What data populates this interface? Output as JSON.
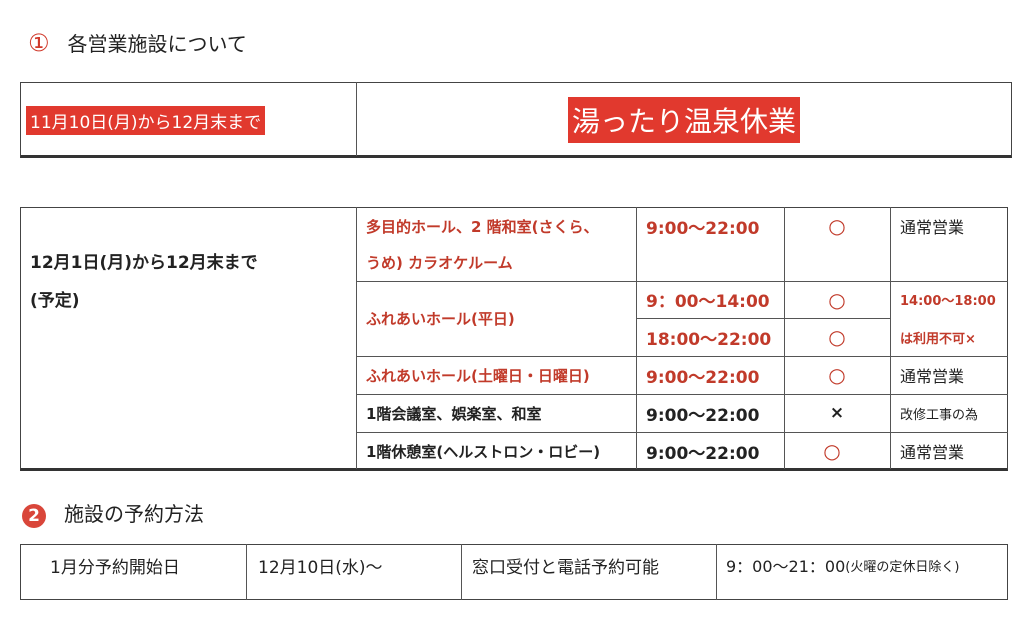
{
  "section1": {
    "number": "①",
    "title": "各営業施設について",
    "notice": {
      "period": "11月10日(月)から12月末まで",
      "message": "湯ったり温泉休業"
    },
    "schedule": {
      "period": "12月1日(月)から12月末まで",
      "period_note": "(予定)",
      "rows": [
        {
          "facility_line1": "多目的ホール、2 階和室(さくら、",
          "facility_line2": "うめ) カラオケルーム",
          "time": "9:00～22:00",
          "mark": "○",
          "note": "通常営業"
        },
        {
          "facility": "ふれあいホール(平日)",
          "time1": "9：00～14:00",
          "mark1": "○",
          "time2": "18:00～22:00",
          "mark2": "○",
          "note_line1": "14:00～18:00",
          "note_line2": "は利用不可×"
        },
        {
          "facility": "ふれあいホール(土曜日・日曜日)",
          "time": "9:00～22:00",
          "mark": "○",
          "note": "通常営業"
        },
        {
          "facility": "1階会議室、娯楽室、和室",
          "time": "9:00～22:00",
          "mark": "×",
          "note": "改修工事の為"
        },
        {
          "facility": "1階休憩室(ヘルストロン・ロビー)",
          "time": "9:00～22:00",
          "mark": "○",
          "note": "通常営業"
        }
      ]
    }
  },
  "section2": {
    "number": "2",
    "title": "施設の予約方法",
    "row": {
      "label": "1月分予約開始日",
      "start": "12月10日(水)～",
      "method": "窓口受付と電話予約可能",
      "hours": "9：00～21：00",
      "hours_note": "(火曜の定休日除く)"
    }
  },
  "colors": {
    "accent_red": "#e1392e",
    "text_red": "#c13a2a"
  }
}
